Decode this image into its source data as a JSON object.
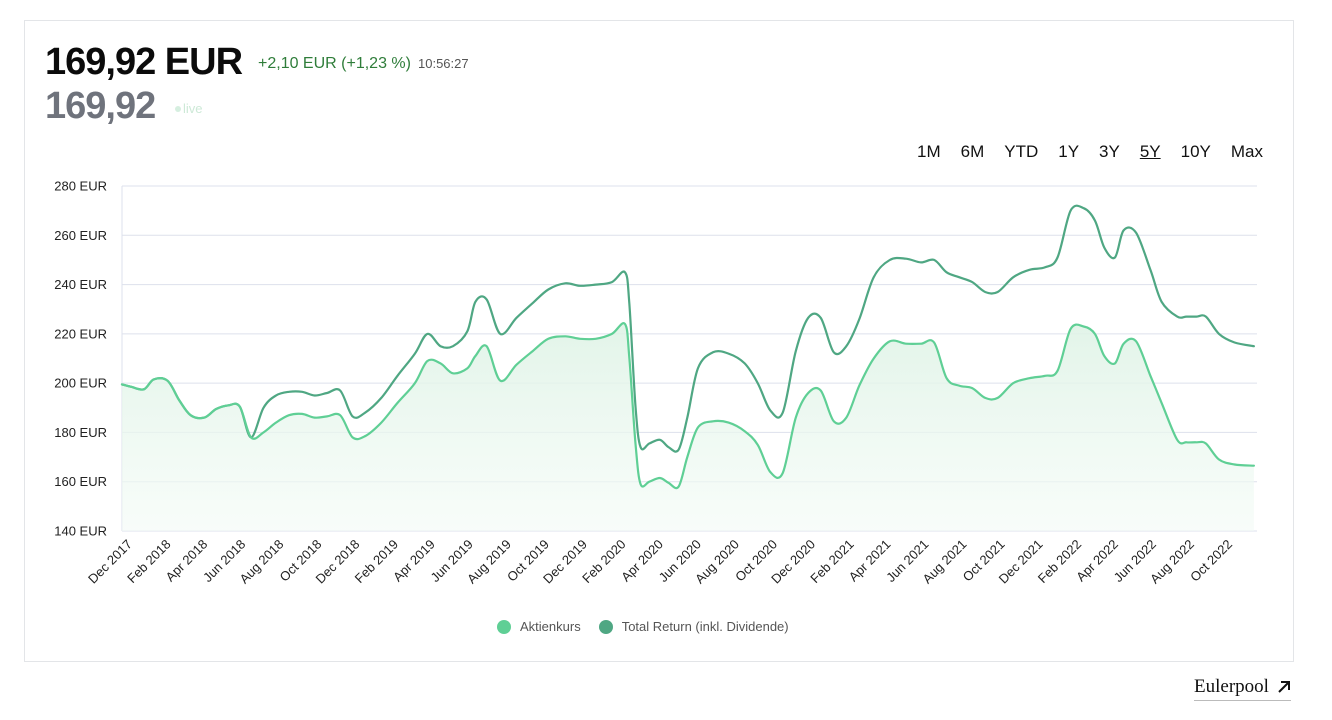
{
  "header": {
    "price": "169,92 EUR",
    "change": "+2,10 EUR (+1,23 %)",
    "time": "10:56:27",
    "sub_price": "169,92",
    "live_label": "live"
  },
  "ranges": [
    {
      "label": "1M",
      "active": false
    },
    {
      "label": "6M",
      "active": false
    },
    {
      "label": "YTD",
      "active": false
    },
    {
      "label": "1Y",
      "active": false
    },
    {
      "label": "3Y",
      "active": false
    },
    {
      "label": "5Y",
      "active": true
    },
    {
      "label": "10Y",
      "active": false
    },
    {
      "label": "Max",
      "active": false
    }
  ],
  "brand": {
    "name": "Eulerpool",
    "icon": "arrow-up-right-icon"
  },
  "colors": {
    "aktienkurs": "#5fcf95",
    "total_return": "#4fa783",
    "grid": "#dde1ec",
    "fill": "#eaf7ef"
  },
  "chart_data": {
    "type": "line",
    "ylim": [
      140,
      280
    ],
    "yticks": [
      140,
      160,
      180,
      200,
      220,
      240,
      260,
      280
    ],
    "y_unit": "EUR",
    "xlim": [
      "2017-11-20",
      "2022-11-15"
    ],
    "x_ticks": [
      "Dec 2017",
      "Feb 2018",
      "Apr 2018",
      "Jun 2018",
      "Aug 2018",
      "Oct 2018",
      "Dec 2018",
      "Feb 2019",
      "Apr 2019",
      "Jun 2019",
      "Aug 2019",
      "Oct 2019",
      "Dec 2019",
      "Feb 2020",
      "Apr 2020",
      "Jun 2020",
      "Aug 2020",
      "Oct 2020",
      "Dec 2020",
      "Feb 2021",
      "Apr 2021",
      "Jun 2021",
      "Aug 2021",
      "Oct 2021",
      "Dec 2021",
      "Feb 2022",
      "Apr 2022",
      "Jun 2022",
      "Aug 2022",
      "Oct 2022"
    ],
    "x_tick_dates": [
      "2017-12-01",
      "2018-02-01",
      "2018-04-01",
      "2018-06-01",
      "2018-08-01",
      "2018-10-01",
      "2018-12-01",
      "2019-02-01",
      "2019-04-01",
      "2019-06-01",
      "2019-08-01",
      "2019-10-01",
      "2019-12-01",
      "2020-02-01",
      "2020-04-01",
      "2020-06-01",
      "2020-08-01",
      "2020-10-01",
      "2020-12-01",
      "2021-02-01",
      "2021-04-01",
      "2021-06-01",
      "2021-08-01",
      "2021-10-01",
      "2021-12-01",
      "2022-02-01",
      "2022-04-01",
      "2022-06-01",
      "2022-08-01",
      "2022-10-01"
    ],
    "legend_position": "bottom",
    "grid": true,
    "series": [
      {
        "name": "Aktienkurs",
        "x": [
          "2017-11-20",
          "2017-12-05",
          "2017-12-25",
          "2018-01-10",
          "2018-02-01",
          "2018-02-20",
          "2018-03-10",
          "2018-04-01",
          "2018-04-20",
          "2018-05-10",
          "2018-05-28",
          "2018-06-15",
          "2018-07-05",
          "2018-07-25",
          "2018-08-15",
          "2018-09-05",
          "2018-09-25",
          "2018-10-15",
          "2018-11-05",
          "2018-11-25",
          "2018-12-15",
          "2019-01-10",
          "2019-02-05",
          "2019-03-05",
          "2019-03-25",
          "2019-04-15",
          "2019-05-05",
          "2019-05-28",
          "2019-06-10",
          "2019-06-28",
          "2019-07-20",
          "2019-08-15",
          "2019-09-10",
          "2019-10-05",
          "2019-11-01",
          "2019-11-25",
          "2019-12-20",
          "2020-01-15",
          "2020-02-05",
          "2020-02-12",
          "2020-02-22",
          "2020-03-01",
          "2020-03-15",
          "2020-04-01",
          "2020-04-15",
          "2020-05-01",
          "2020-05-15",
          "2020-06-01",
          "2020-06-25",
          "2020-07-20",
          "2020-08-15",
          "2020-09-05",
          "2020-09-25",
          "2020-10-15",
          "2020-11-05",
          "2020-11-25",
          "2020-12-15",
          "2021-01-05",
          "2021-01-25",
          "2021-02-15",
          "2021-03-10",
          "2021-04-05",
          "2021-05-01",
          "2021-05-25",
          "2021-06-15",
          "2021-07-05",
          "2021-07-25",
          "2021-08-15",
          "2021-09-05",
          "2021-09-25",
          "2021-10-20",
          "2021-11-15",
          "2021-12-10",
          "2021-12-30",
          "2022-01-20",
          "2022-02-10",
          "2022-02-28",
          "2022-03-15",
          "2022-04-01",
          "2022-04-15",
          "2022-05-05",
          "2022-05-28",
          "2022-06-15",
          "2022-07-10",
          "2022-07-25",
          "2022-08-10",
          "2022-08-25",
          "2022-09-15",
          "2022-10-10",
          "2022-11-10"
        ],
        "values": [
          199.5,
          198.5,
          197.5,
          201.5,
          201,
          193,
          187,
          186,
          189.5,
          191,
          190.5,
          178,
          180,
          184,
          187,
          187.5,
          186,
          186.5,
          187,
          178,
          178.5,
          184,
          192,
          200,
          209,
          208,
          204,
          206,
          211,
          215,
          201,
          207.5,
          213,
          218,
          219,
          218,
          218,
          220,
          224,
          210,
          175,
          159,
          160,
          161.5,
          159.5,
          158,
          170,
          182,
          184.5,
          184,
          180.5,
          175,
          164,
          163.5,
          186,
          196,
          197,
          184.5,
          186,
          199,
          210,
          217,
          216,
          216,
          216.5,
          202,
          199,
          198,
          194,
          194,
          200,
          202,
          203,
          205,
          222,
          223,
          220,
          211,
          208,
          216,
          217,
          203,
          192,
          177,
          176,
          176,
          175.5,
          169,
          167,
          166.5
        ]
      },
      {
        "name": "Total Return (inkl. Dividende)",
        "x": [
          "2017-11-20",
          "2017-12-05",
          "2017-12-25",
          "2018-01-10",
          "2018-02-01",
          "2018-02-20",
          "2018-03-10",
          "2018-04-01",
          "2018-04-20",
          "2018-05-10",
          "2018-05-28",
          "2018-06-15",
          "2018-07-05",
          "2018-07-25",
          "2018-08-15",
          "2018-09-05",
          "2018-09-25",
          "2018-10-15",
          "2018-11-05",
          "2018-11-25",
          "2018-12-15",
          "2019-01-10",
          "2019-02-05",
          "2019-03-05",
          "2019-03-25",
          "2019-04-15",
          "2019-05-05",
          "2019-05-28",
          "2019-06-10",
          "2019-06-28",
          "2019-07-20",
          "2019-08-15",
          "2019-09-10",
          "2019-10-05",
          "2019-11-01",
          "2019-11-25",
          "2019-12-20",
          "2020-01-15",
          "2020-02-05",
          "2020-02-12",
          "2020-02-22",
          "2020-03-01",
          "2020-03-15",
          "2020-04-01",
          "2020-04-15",
          "2020-05-01",
          "2020-05-15",
          "2020-06-01",
          "2020-06-25",
          "2020-07-20",
          "2020-08-15",
          "2020-09-05",
          "2020-09-25",
          "2020-10-15",
          "2020-11-05",
          "2020-11-25",
          "2020-12-15",
          "2021-01-05",
          "2021-01-25",
          "2021-02-15",
          "2021-03-10",
          "2021-04-05",
          "2021-05-01",
          "2021-05-25",
          "2021-06-15",
          "2021-07-05",
          "2021-07-25",
          "2021-08-15",
          "2021-09-05",
          "2021-09-25",
          "2021-10-20",
          "2021-11-15",
          "2021-12-10",
          "2021-12-30",
          "2022-01-20",
          "2022-02-10",
          "2022-02-28",
          "2022-03-15",
          "2022-04-01",
          "2022-04-15",
          "2022-05-05",
          "2022-05-28",
          "2022-06-15",
          "2022-07-10",
          "2022-07-25",
          "2022-08-10",
          "2022-08-25",
          "2022-09-15",
          "2022-10-10",
          "2022-11-10"
        ],
        "values": [
          199.5,
          198.5,
          197.5,
          201.5,
          201,
          193,
          187,
          186,
          189.5,
          191,
          190.5,
          178,
          190,
          195,
          196.5,
          196.5,
          195,
          196,
          197,
          186.5,
          188,
          194,
          203,
          212,
          220,
          215,
          215,
          221,
          233,
          234,
          220,
          226.5,
          232.5,
          238,
          240.5,
          239.5,
          240,
          241,
          245,
          232,
          190,
          174,
          175.5,
          177,
          174,
          173,
          186,
          206,
          212.5,
          212,
          208,
          200,
          189,
          188,
          213,
          226.5,
          226.5,
          212.5,
          215,
          226,
          243,
          250,
          250.5,
          249,
          250,
          245,
          243,
          241,
          237,
          237,
          243,
          246,
          247,
          251,
          270,
          271,
          266,
          255,
          251,
          262,
          261,
          246,
          233,
          227,
          227,
          227,
          227,
          220,
          216.5,
          215
        ]
      }
    ]
  }
}
